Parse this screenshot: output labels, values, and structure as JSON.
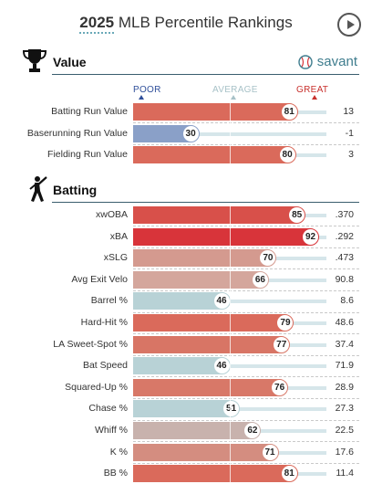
{
  "header": {
    "year": "2025",
    "title": "MLB Percentile Rankings",
    "play_icon": "play-circle-icon"
  },
  "value_section": {
    "title": "Value",
    "icon": "trophy-icon",
    "brand_label": "savant",
    "brand_icon": "baseball-icon",
    "scale": {
      "poor": "POOR",
      "average": "AVERAGE",
      "great": "GREAT"
    },
    "metrics": [
      {
        "label": "Batting Run Value",
        "percentile": 81,
        "value": "13",
        "color": "#da6a5b"
      },
      {
        "label": "Baserunning Run Value",
        "percentile": 30,
        "value": "-1",
        "color": "#8aa0c8"
      },
      {
        "label": "Fielding Run Value",
        "percentile": 80,
        "value": "3",
        "color": "#da6a5b"
      }
    ]
  },
  "batting_section": {
    "title": "Batting",
    "icon": "batter-icon",
    "metrics": [
      {
        "label": "xwOBA",
        "percentile": 85,
        "value": ".370",
        "color": "#d8504a"
      },
      {
        "label": "xBA",
        "percentile": 92,
        "value": ".292",
        "color": "#d8343a"
      },
      {
        "label": "xSLG",
        "percentile": 70,
        "value": ".473",
        "color": "#d49a8f"
      },
      {
        "label": "Avg Exit Velo",
        "percentile": 66,
        "value": "90.8",
        "color": "#d4a69c"
      },
      {
        "label": "Barrel %",
        "percentile": 46,
        "value": "8.6",
        "color": "#b8d2d6"
      },
      {
        "label": "Hard-Hit %",
        "percentile": 79,
        "value": "48.6",
        "color": "#da6a5b"
      },
      {
        "label": "LA Sweet-Spot %",
        "percentile": 77,
        "value": "37.4",
        "color": "#d87565"
      },
      {
        "label": "Bat Speed",
        "percentile": 46,
        "value": "71.9",
        "color": "#b8d2d6"
      },
      {
        "label": "Squared-Up %",
        "percentile": 76,
        "value": "28.9",
        "color": "#d87868"
      },
      {
        "label": "Chase %",
        "percentile": 51,
        "value": "27.3",
        "color": "#b8d2d6"
      },
      {
        "label": "Whiff %",
        "percentile": 62,
        "value": "22.5",
        "color": "#c8b2ad"
      },
      {
        "label": "K %",
        "percentile": 71,
        "value": "17.6",
        "color": "#d48d80"
      },
      {
        "label": "BB %",
        "percentile": 81,
        "value": "11.4",
        "color": "#da6a5b"
      }
    ]
  }
}
